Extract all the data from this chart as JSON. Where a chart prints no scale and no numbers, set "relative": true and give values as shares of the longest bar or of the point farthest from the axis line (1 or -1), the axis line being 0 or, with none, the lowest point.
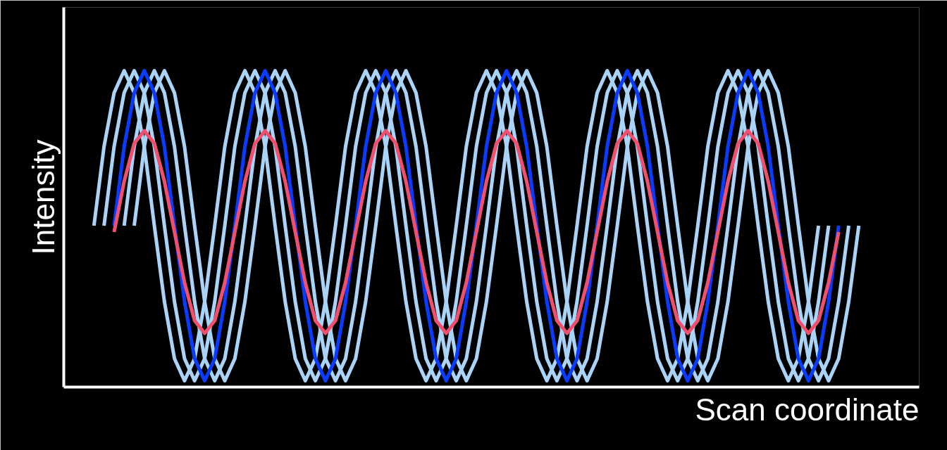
{
  "chart_data": {
    "type": "line",
    "relative": true,
    "xlabel": "Scan coordinate",
    "ylabel": "Intensity",
    "categories": [
      null,
      null,
      null,
      null,
      null,
      null,
      null,
      null,
      null,
      null,
      null,
      null,
      null,
      null,
      null,
      null,
      null,
      null,
      null,
      null,
      null,
      null,
      null,
      null,
      null,
      null,
      null,
      null,
      null,
      null,
      null,
      null,
      null,
      null,
      null,
      null,
      null,
      null,
      null,
      null,
      null,
      null,
      null,
      null,
      null,
      null,
      null,
      null,
      null,
      null,
      null,
      null,
      null,
      null,
      null,
      null,
      null,
      null,
      null,
      null,
      null,
      null,
      null,
      null,
      null,
      null,
      null,
      null,
      null,
      null,
      null,
      null,
      null,
      null,
      null,
      null,
      null
    ],
    "series": [
      {
        "color": "#a9d3f7",
        "values": [
          0.51,
          0.76,
          0.93,
          1.0,
          0.93,
          0.76,
          0.51,
          0.27,
          0.09,
          0.02,
          0.09,
          0.27,
          0.51,
          0.76,
          0.93,
          1.0,
          0.93,
          0.76,
          0.51,
          0.27,
          0.09,
          0.02,
          0.09,
          0.27,
          0.51,
          0.76,
          0.93,
          1.0,
          0.93,
          0.76,
          0.51,
          0.27,
          0.09,
          0.02,
          0.09,
          0.27,
          0.51,
          0.76,
          0.93,
          1.0,
          0.93,
          0.76,
          0.51,
          0.27,
          0.09,
          0.02,
          0.09,
          0.27,
          0.51,
          0.76,
          0.93,
          1.0,
          0.93,
          0.76,
          0.51,
          0.27,
          0.09,
          0.02,
          0.09,
          0.27,
          0.51,
          0.76,
          0.93,
          1.0,
          0.93,
          0.76,
          0.51,
          0.27,
          0.09,
          0.02,
          0.09,
          0.27,
          0.51,
          null,
          null,
          null,
          null
        ]
      },
      {
        "color": "#a9d3f7",
        "values": [
          null,
          0.51,
          0.76,
          0.93,
          1.0,
          0.93,
          0.76,
          0.51,
          0.27,
          0.09,
          0.02,
          0.09,
          0.27,
          0.51,
          0.76,
          0.93,
          1.0,
          0.93,
          0.76,
          0.51,
          0.27,
          0.09,
          0.02,
          0.09,
          0.27,
          0.51,
          0.76,
          0.93,
          1.0,
          0.93,
          0.76,
          0.51,
          0.27,
          0.09,
          0.02,
          0.09,
          0.27,
          0.51,
          0.76,
          0.93,
          1.0,
          0.93,
          0.76,
          0.51,
          0.27,
          0.09,
          0.02,
          0.09,
          0.27,
          0.51,
          0.76,
          0.93,
          1.0,
          0.93,
          0.76,
          0.51,
          0.27,
          0.09,
          0.02,
          0.09,
          0.27,
          0.51,
          0.76,
          0.93,
          1.0,
          0.93,
          0.76,
          0.51,
          0.27,
          0.09,
          0.02,
          0.09,
          0.27,
          0.51,
          null,
          null,
          null
        ]
      },
      {
        "color": "#a9d3f7",
        "values": [
          null,
          null,
          null,
          0.51,
          0.76,
          0.93,
          1.0,
          0.93,
          0.76,
          0.51,
          0.27,
          0.09,
          0.02,
          0.09,
          0.27,
          0.51,
          0.76,
          0.93,
          1.0,
          0.93,
          0.76,
          0.51,
          0.27,
          0.09,
          0.02,
          0.09,
          0.27,
          0.51,
          0.76,
          0.93,
          1.0,
          0.93,
          0.76,
          0.51,
          0.27,
          0.09,
          0.02,
          0.09,
          0.27,
          0.51,
          0.76,
          0.93,
          1.0,
          0.93,
          0.76,
          0.51,
          0.27,
          0.09,
          0.02,
          0.09,
          0.27,
          0.51,
          0.76,
          0.93,
          1.0,
          0.93,
          0.76,
          0.51,
          0.27,
          0.09,
          0.02,
          0.09,
          0.27,
          0.51,
          0.76,
          0.93,
          1.0,
          0.93,
          0.76,
          0.51,
          0.27,
          0.09,
          0.02,
          0.09,
          0.27,
          0.51,
          null
        ]
      },
      {
        "color": "#a9d3f7",
        "values": [
          null,
          null,
          null,
          null,
          0.51,
          0.76,
          0.93,
          1.0,
          0.93,
          0.76,
          0.51,
          0.27,
          0.09,
          0.02,
          0.09,
          0.27,
          0.51,
          0.76,
          0.93,
          1.0,
          0.93,
          0.76,
          0.51,
          0.27,
          0.09,
          0.02,
          0.09,
          0.27,
          0.51,
          0.76,
          0.93,
          1.0,
          0.93,
          0.76,
          0.51,
          0.27,
          0.09,
          0.02,
          0.09,
          0.27,
          0.51,
          0.76,
          0.93,
          1.0,
          0.93,
          0.76,
          0.51,
          0.27,
          0.09,
          0.02,
          0.09,
          0.27,
          0.51,
          0.76,
          0.93,
          1.0,
          0.93,
          0.76,
          0.51,
          0.27,
          0.09,
          0.02,
          0.09,
          0.27,
          0.51,
          0.76,
          0.93,
          1.0,
          0.93,
          0.76,
          0.51,
          0.27,
          0.09,
          0.02,
          0.09,
          0.27,
          0.51
        ]
      },
      {
        "color": "#0a3cff",
        "values": [
          null,
          null,
          0.51,
          0.76,
          0.93,
          1.0,
          0.93,
          0.76,
          0.51,
          0.27,
          0.09,
          0.02,
          0.09,
          0.27,
          0.51,
          0.76,
          0.93,
          1.0,
          0.93,
          0.76,
          0.51,
          0.27,
          0.09,
          0.02,
          0.09,
          0.27,
          0.51,
          0.76,
          0.93,
          1.0,
          0.93,
          0.76,
          0.51,
          0.27,
          0.09,
          0.02,
          0.09,
          0.27,
          0.51,
          0.76,
          0.93,
          1.0,
          0.93,
          0.76,
          0.51,
          0.27,
          0.09,
          0.02,
          0.09,
          0.27,
          0.51,
          0.76,
          0.93,
          1.0,
          0.93,
          0.76,
          0.51,
          0.27,
          0.09,
          0.02,
          0.09,
          0.27,
          0.51,
          0.76,
          0.93,
          1.0,
          0.93,
          0.76,
          0.51,
          0.27,
          0.09,
          0.02,
          0.09,
          0.27,
          0.51,
          null,
          null
        ]
      },
      {
        "color": "#f0506e",
        "values": [
          null,
          null,
          0.49,
          0.65,
          0.77,
          0.81,
          0.77,
          0.65,
          0.49,
          0.33,
          0.21,
          0.17,
          0.21,
          0.33,
          0.49,
          0.65,
          0.77,
          0.81,
          0.77,
          0.65,
          0.49,
          0.33,
          0.21,
          0.17,
          0.21,
          0.33,
          0.49,
          0.65,
          0.77,
          0.81,
          0.77,
          0.65,
          0.49,
          0.33,
          0.21,
          0.17,
          0.21,
          0.33,
          0.49,
          0.65,
          0.77,
          0.81,
          0.77,
          0.65,
          0.49,
          0.33,
          0.21,
          0.17,
          0.21,
          0.33,
          0.49,
          0.65,
          0.77,
          0.81,
          0.77,
          0.65,
          0.49,
          0.33,
          0.21,
          0.17,
          0.21,
          0.33,
          0.49,
          0.65,
          0.77,
          0.81,
          0.77,
          0.65,
          0.49,
          0.33,
          0.21,
          0.17,
          0.21,
          0.33,
          0.49,
          null,
          null
        ]
      }
    ]
  }
}
